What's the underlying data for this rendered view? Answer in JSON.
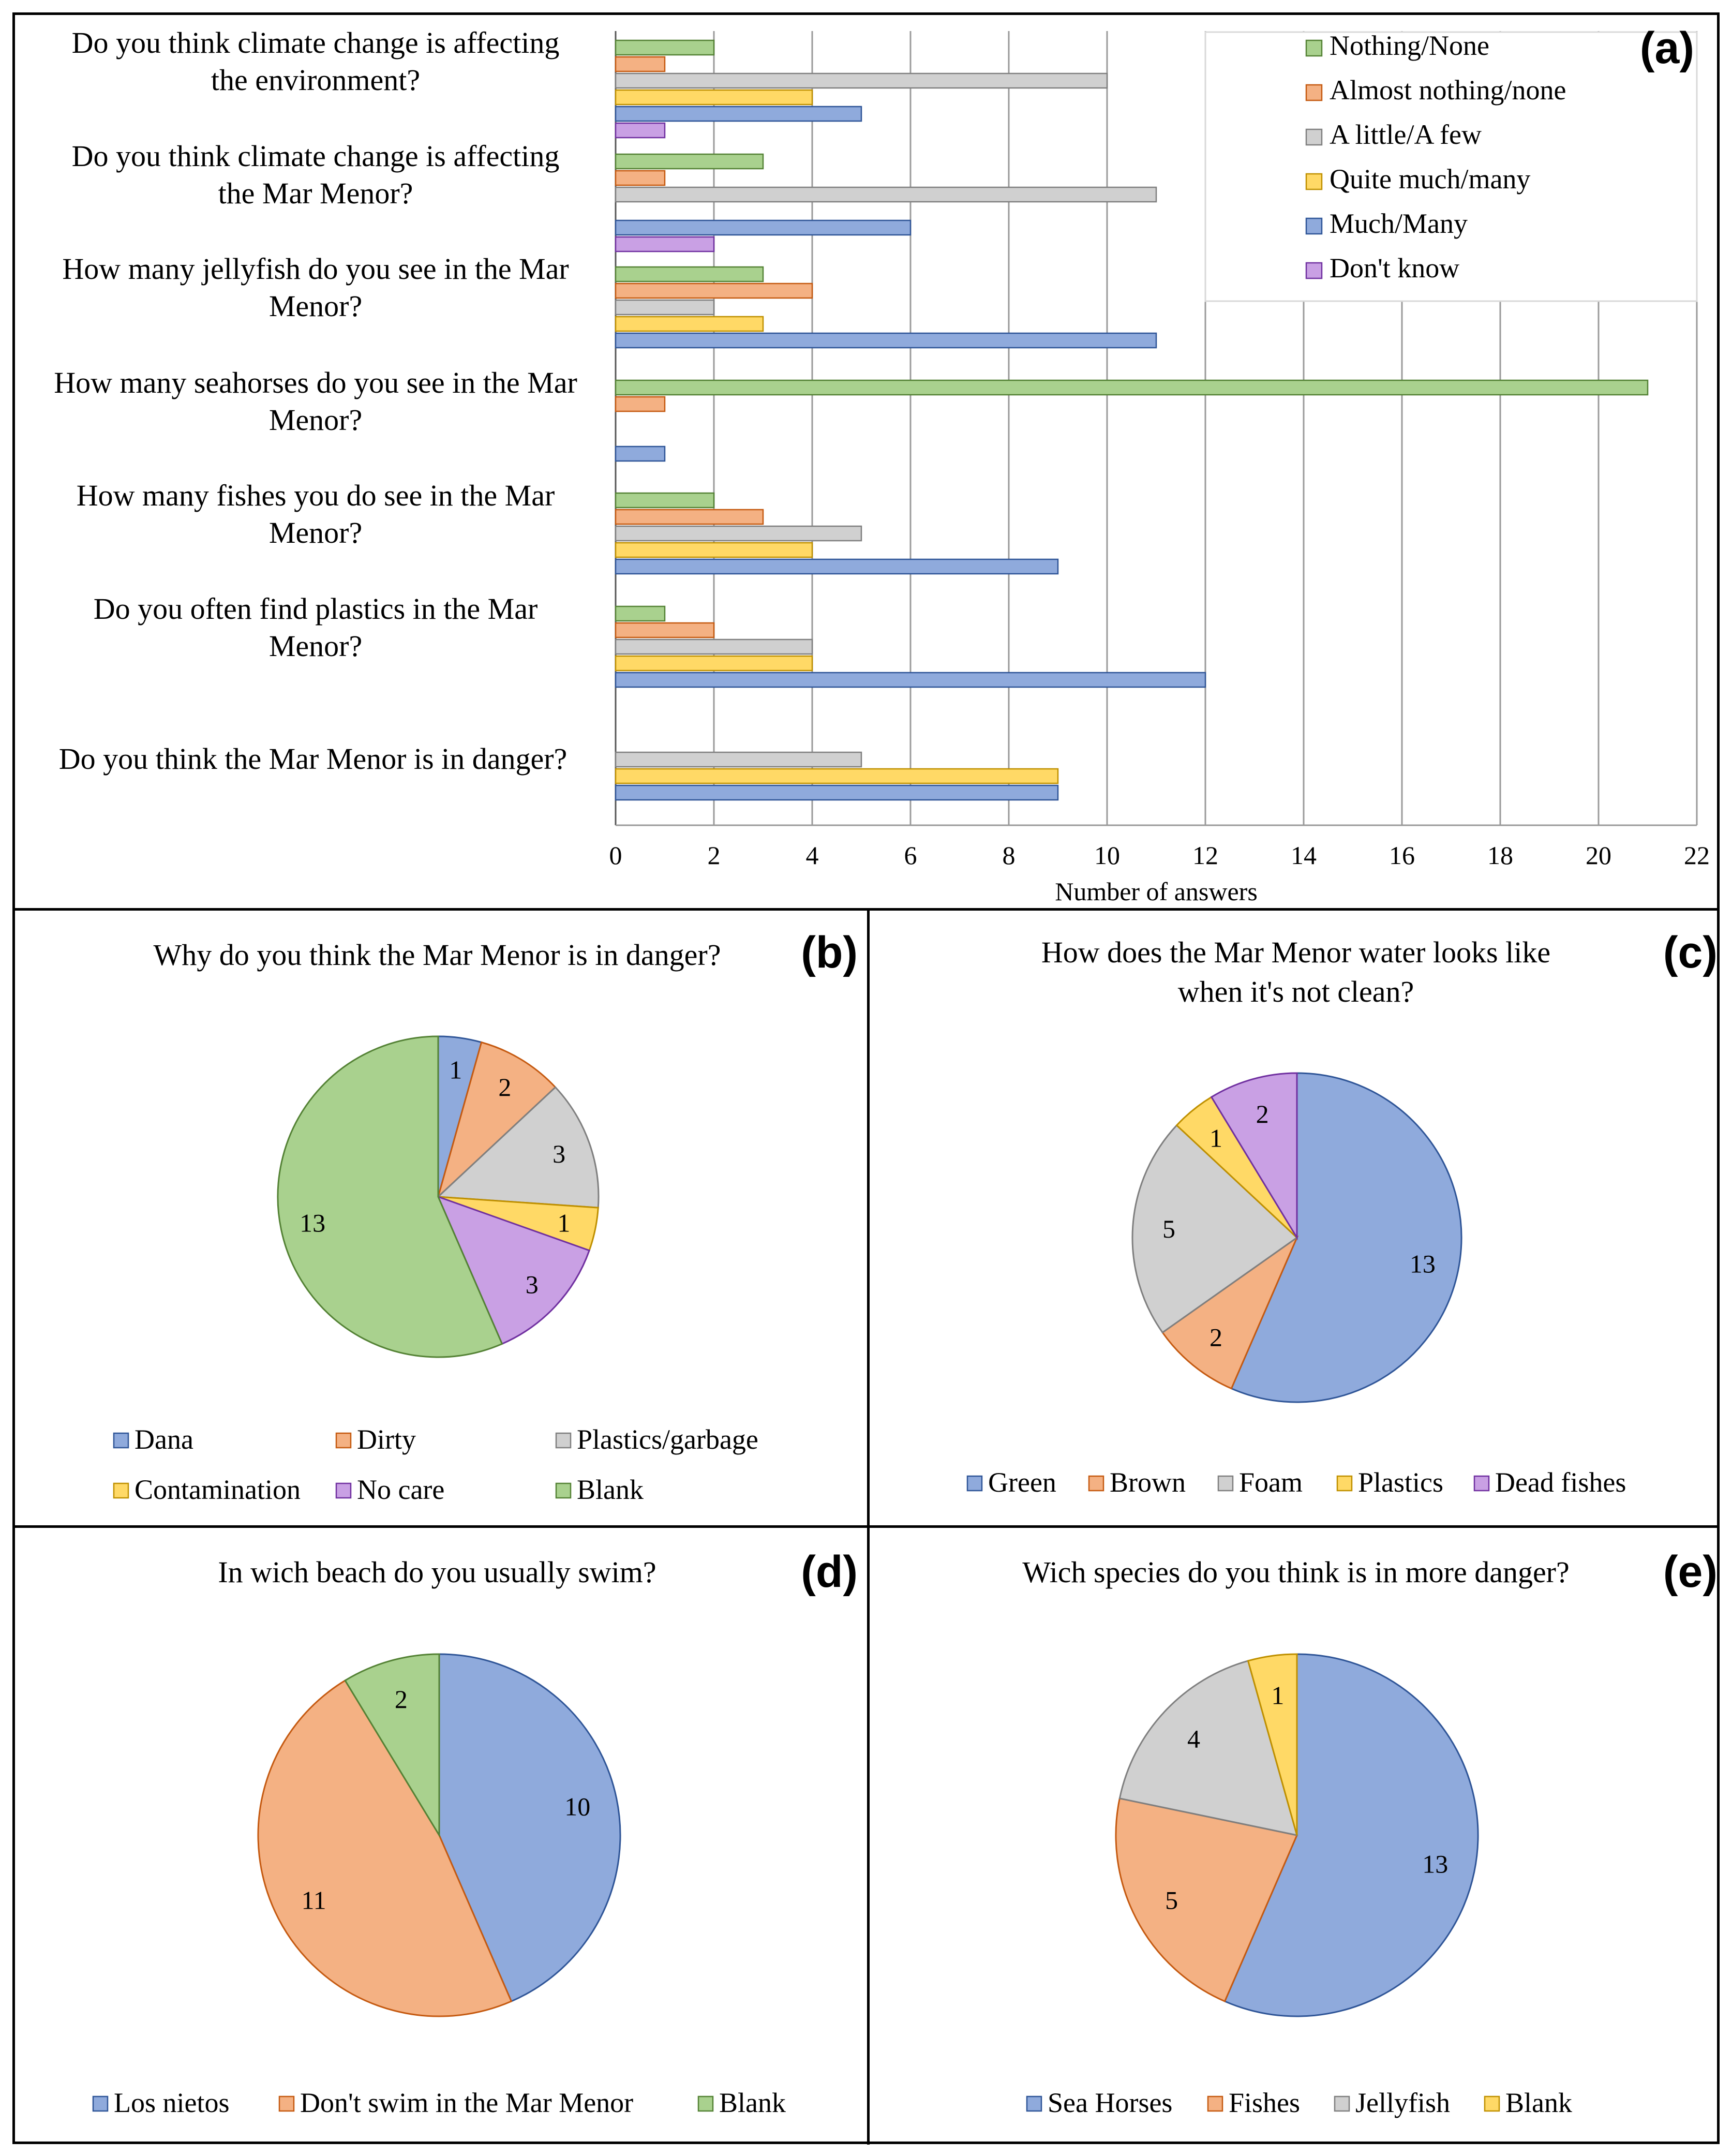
{
  "colors": {
    "green": "#a9d18e",
    "green_stroke": "#548235",
    "orange": "#f4b183",
    "orange_stroke": "#c55a11",
    "gray": "#d0d0d0",
    "gray_stroke": "#7f7f7f",
    "yellow": "#ffd966",
    "yellow_stroke": "#bf9000",
    "blue": "#8faadc",
    "blue_stroke": "#2f5597",
    "purple": "#c9a0e4",
    "purple_stroke": "#7030a0"
  },
  "chart_data": [
    {
      "type": "bar",
      "orientation": "horizontal",
      "panel": "(a)",
      "xlabel": "Number of answers",
      "xlim": [
        0,
        22
      ],
      "xticks": [
        0,
        2,
        4,
        6,
        8,
        10,
        12,
        14,
        16,
        18,
        20,
        22
      ],
      "grid": true,
      "legend_position": "top-right",
      "categories": [
        [
          "Do you think climate change is affecting",
          "the environment?"
        ],
        [
          "Do you think climate change is affecting",
          "the Mar Menor?"
        ],
        [
          "How many jellyfish do you see in the Mar",
          "Menor?"
        ],
        [
          "How many seahorses do you see in the Mar",
          "Menor?"
        ],
        [
          "How many fishes you do see in the Mar",
          "Menor?"
        ],
        [
          "Do you often find plastics in the Mar",
          "Menor?"
        ],
        [
          "Do you think the Mar Menor is in danger?"
        ]
      ],
      "series": [
        {
          "name": "Nothing/None",
          "color": "green",
          "values": [
            2,
            3,
            3,
            21,
            2,
            1,
            0
          ]
        },
        {
          "name": "Almost nothing/none",
          "color": "orange",
          "values": [
            1,
            1,
            4,
            1,
            3,
            2,
            0
          ]
        },
        {
          "name": "A little/A few",
          "color": "gray",
          "values": [
            10,
            11,
            2,
            0,
            5,
            4,
            5
          ]
        },
        {
          "name": "Quite much/many",
          "color": "yellow",
          "values": [
            4,
            0,
            3,
            0,
            4,
            4,
            9
          ]
        },
        {
          "name": "Much/Many",
          "color": "blue",
          "values": [
            5,
            6,
            11,
            1,
            9,
            12,
            9
          ]
        },
        {
          "name": "Don't know",
          "color": "purple",
          "values": [
            1,
            2,
            0,
            0,
            0,
            0,
            0
          ]
        }
      ]
    },
    {
      "type": "pie",
      "panel": "(b)",
      "title": "Why do you think the Mar Menor is in danger?",
      "slices": [
        {
          "label": "Dana",
          "value": 1,
          "color": "blue"
        },
        {
          "label": "Dirty",
          "value": 2,
          "color": "orange"
        },
        {
          "label": "Plastics/garbage",
          "value": 3,
          "color": "gray"
        },
        {
          "label": "Contamination",
          "value": 1,
          "color": "yellow"
        },
        {
          "label": "No care",
          "value": 3,
          "color": "purple"
        },
        {
          "label": "Blank",
          "value": 13,
          "color": "green"
        }
      ],
      "legend_rows": [
        [
          0,
          1,
          2
        ],
        [
          3,
          4,
          5
        ]
      ]
    },
    {
      "type": "pie",
      "panel": "(c)",
      "title": [
        "How does the Mar Menor water looks like",
        "when it's not clean?"
      ],
      "slices": [
        {
          "label": "Green",
          "value": 13,
          "color": "blue"
        },
        {
          "label": "Brown",
          "value": 2,
          "color": "orange"
        },
        {
          "label": "Foam",
          "value": 5,
          "color": "gray"
        },
        {
          "label": "Plastics",
          "value": 1,
          "color": "yellow"
        },
        {
          "label": "Dead fishes",
          "value": 2,
          "color": "purple"
        }
      ],
      "legend_rows": [
        [
          0,
          1,
          2,
          3,
          4
        ]
      ]
    },
    {
      "type": "pie",
      "panel": "(d)",
      "title": "In wich beach do you usually swim?",
      "slices": [
        {
          "label": "Los nietos",
          "value": 10,
          "color": "blue"
        },
        {
          "label": "Don't swim in the Mar Menor",
          "value": 11,
          "color": "orange"
        },
        {
          "label": "Blank",
          "value": 2,
          "color": "green"
        }
      ],
      "legend_rows": [
        [
          0,
          1,
          2
        ]
      ]
    },
    {
      "type": "pie",
      "panel": "(e)",
      "title": "Wich species do you think is in more danger?",
      "slices": [
        {
          "label": "Sea Horses",
          "value": 13,
          "color": "blue"
        },
        {
          "label": "Fishes",
          "value": 5,
          "color": "orange"
        },
        {
          "label": "Jellyfish",
          "value": 4,
          "color": "gray"
        },
        {
          "label": "Blank",
          "value": 1,
          "color": "yellow"
        }
      ],
      "legend_rows": [
        [
          0,
          1,
          2,
          3
        ]
      ]
    }
  ]
}
